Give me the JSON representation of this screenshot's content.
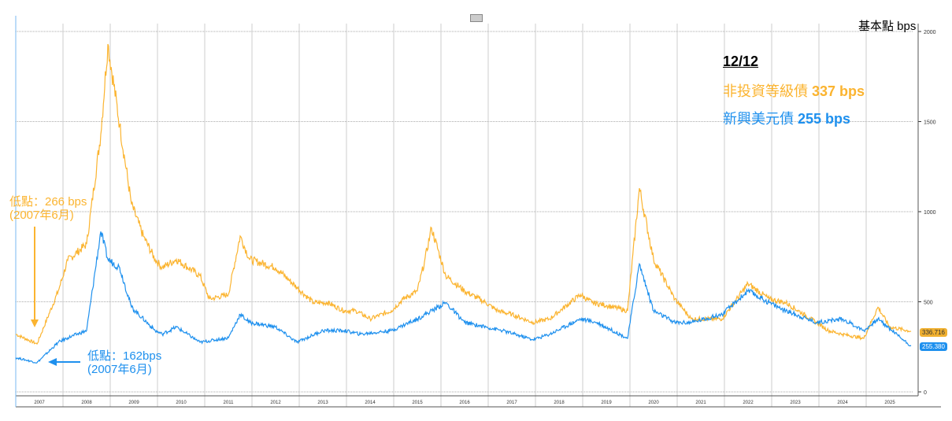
{
  "header": {
    "unit_label": "基本點 bps",
    "date_label": "12/12",
    "hy_label": "非投資等級債",
    "hy_value": "337 bps",
    "em_label": "新興美元債",
    "em_value": "255 bps"
  },
  "annotations": {
    "hy_low_line1": "低點：266 bps",
    "hy_low_line2": "(2007年6月)",
    "em_low_line1": "低點：162bps",
    "em_low_line2": "(2007年6月)"
  },
  "tags": {
    "hy_last": "336.716",
    "em_last": "255.380"
  },
  "colors": {
    "hy": "#fbb430",
    "em": "#1e90ee"
  },
  "chart_data": {
    "type": "line",
    "xlabel": "",
    "ylabel": "基本點 bps",
    "xlim": [
      2007,
      2026
    ],
    "ylim": [
      0,
      2000
    ],
    "yticks": [
      0,
      500,
      1000,
      1500,
      2000
    ],
    "xtick_labels": [
      "2007",
      "2008",
      "2009",
      "2010",
      "2011",
      "2012",
      "2013",
      "2014",
      "2015",
      "2016",
      "2017",
      "2018",
      "2019",
      "2020",
      "2021",
      "2022",
      "2023",
      "2024",
      "2025"
    ],
    "grid": true,
    "series": [
      {
        "name": "非投資等級債",
        "color": "#fbb430",
        "x": [
          2007.0,
          2007.45,
          2007.9,
          2008.1,
          2008.5,
          2008.8,
          2008.95,
          2009.2,
          2009.45,
          2009.7,
          2009.95,
          2010.1,
          2010.4,
          2010.9,
          2011.1,
          2011.5,
          2011.75,
          2011.95,
          2012.5,
          2012.95,
          2013.3,
          2013.6,
          2013.95,
          2014.2,
          2014.5,
          2014.95,
          2015.2,
          2015.5,
          2015.65,
          2015.8,
          2016.1,
          2016.5,
          2016.95,
          2017.2,
          2017.5,
          2017.95,
          2018.3,
          2018.95,
          2019.2,
          2019.5,
          2019.95,
          2020.2,
          2020.5,
          2020.95,
          2021.3,
          2021.95,
          2022.5,
          2022.95,
          2023.3,
          2023.95,
          2024.2,
          2024.5,
          2024.95,
          2025.25,
          2025.5,
          2025.95
        ],
        "y": [
          320,
          266,
          560,
          730,
          820,
          1430,
          1930,
          1480,
          1040,
          865,
          735,
          690,
          735,
          645,
          515,
          540,
          865,
          735,
          690,
          580,
          495,
          495,
          450,
          450,
          405,
          450,
          515,
          560,
          720,
          910,
          645,
          560,
          495,
          450,
          430,
          385,
          405,
          540,
          495,
          480,
          450,
          1130,
          735,
          515,
          405,
          405,
          600,
          515,
          495,
          385,
          340,
          320,
          297,
          470,
          360,
          337
        ]
      },
      {
        "name": "新興美元債",
        "color": "#1e90ee",
        "x": [
          2007.0,
          2007.45,
          2007.9,
          2008.1,
          2008.5,
          2008.8,
          2008.95,
          2009.2,
          2009.45,
          2009.95,
          2010.1,
          2010.4,
          2010.9,
          2011.5,
          2011.75,
          2011.95,
          2012.5,
          2012.95,
          2013.5,
          2013.95,
          2014.3,
          2014.95,
          2015.5,
          2016.1,
          2016.5,
          2016.95,
          2017.3,
          2017.95,
          2018.3,
          2018.95,
          2019.3,
          2019.95,
          2020.2,
          2020.5,
          2020.95,
          2021.3,
          2021.95,
          2022.5,
          2022.95,
          2023.3,
          2023.95,
          2024.5,
          2024.95,
          2025.25,
          2025.95
        ],
        "y": [
          190,
          162,
          275,
          300,
          340,
          890,
          735,
          690,
          470,
          340,
          320,
          360,
          275,
          300,
          430,
          385,
          360,
          275,
          340,
          340,
          320,
          340,
          405,
          495,
          385,
          360,
          340,
          290,
          320,
          405,
          385,
          297,
          710,
          450,
          385,
          385,
          430,
          560,
          495,
          450,
          385,
          405,
          340,
          405,
          255
        ]
      }
    ]
  }
}
